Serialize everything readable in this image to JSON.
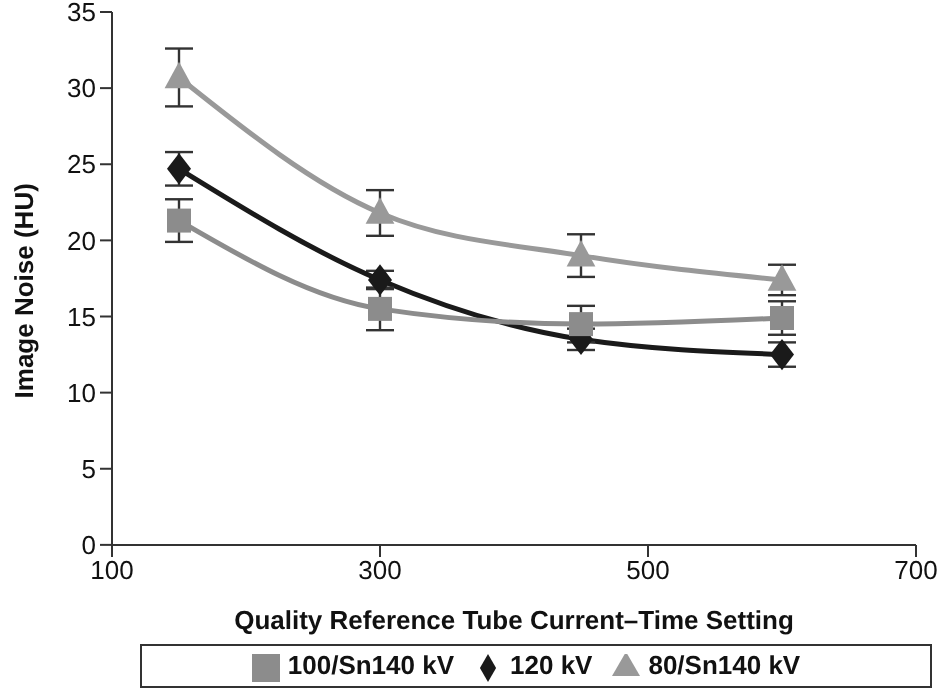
{
  "chart_data": {
    "type": "line",
    "xlabel": "Quality Reference Tube Current–Time Setting",
    "ylabel": "Image Noise (HU)",
    "x": [
      150,
      300,
      450,
      600
    ],
    "xlim": [
      100,
      700
    ],
    "xticks": [
      100,
      300,
      500,
      700
    ],
    "ylim": [
      0,
      35
    ],
    "yticks": [
      0,
      5,
      10,
      15,
      20,
      25,
      30,
      35
    ],
    "grid": false,
    "legend": "bottom",
    "line_style": "solid",
    "series": [
      {
        "name": "120 kV",
        "color": "#1a1a1a",
        "marker": "diamond",
        "values": [
          24.7,
          17.4,
          13.5,
          12.5
        ],
        "errors": [
          1.1,
          0.6,
          0.7,
          0.8
        ]
      },
      {
        "name": "100/Sn140 kV",
        "color": "#8c8c8c",
        "marker": "square",
        "values": [
          21.3,
          15.5,
          14.5,
          14.9
        ],
        "errors": [
          1.4,
          1.4,
          1.2,
          1.1
        ]
      },
      {
        "name": "80/Sn140 kV",
        "color": "#999999",
        "marker": "triangle",
        "values": [
          30.7,
          21.8,
          19.0,
          17.4
        ],
        "errors": [
          1.9,
          1.5,
          1.4,
          1.0
        ]
      }
    ]
  }
}
